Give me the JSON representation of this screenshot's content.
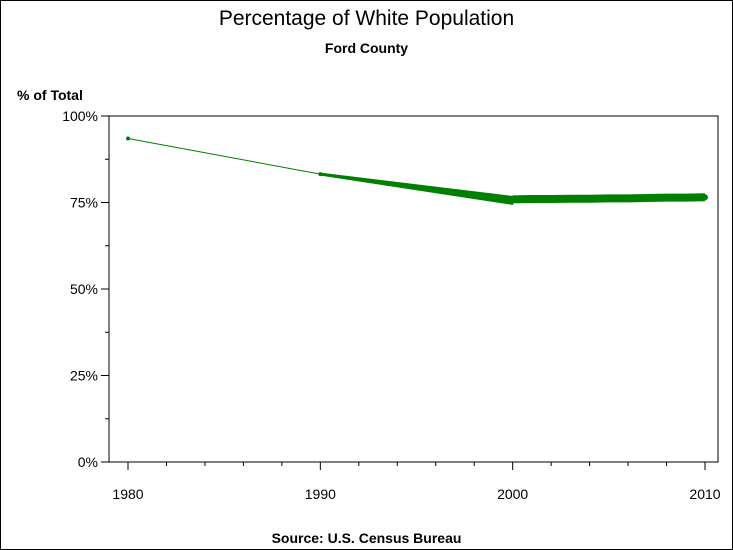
{
  "chart_data": {
    "type": "line",
    "title": "Percentage of White Population",
    "subtitle": "Ford County",
    "ylabel": "% of Total",
    "xlabel": "",
    "footnote": "Source: U.S. Census Bureau",
    "x_ticks": [
      "1980",
      "1990",
      "2000",
      "2010"
    ],
    "y_ticks": [
      "0%",
      "25%",
      "50%",
      "75%",
      "100%"
    ],
    "xlim": [
      1980,
      2010
    ],
    "ylim": [
      0,
      100
    ],
    "grid": false,
    "color": "#008000",
    "series": [
      {
        "x": [
          1980,
          1990,
          2000,
          2001,
          2002,
          2003,
          2004,
          2005,
          2006,
          2007,
          2008,
          2009,
          2010
        ],
        "y": [
          93.5,
          83.2,
          75.9,
          76.0,
          76.0,
          76.1,
          76.1,
          76.2,
          76.2,
          76.3,
          76.4,
          76.4,
          76.5
        ]
      }
    ]
  }
}
